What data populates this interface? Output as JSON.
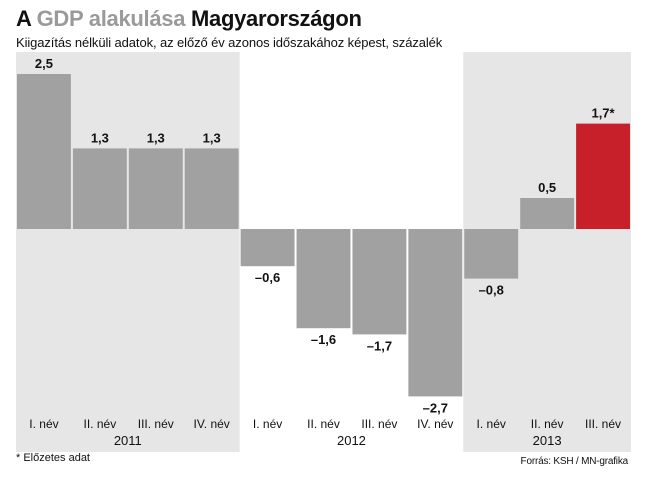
{
  "header": {
    "title_prefix": "A ",
    "title_gdp": "GDP",
    "title_mid": " alakulása ",
    "title_country": "Magyarországon",
    "subtitle": "Kiigazítás nélküli adatok, az előző év azonos időszakához képest, százalék"
  },
  "footer": {
    "footnote": "* Előzetes adat",
    "source": "Forrás: KSH / MN-grafika"
  },
  "colors": {
    "bar": "#a1a1a1",
    "highlight": "#c8202a",
    "panel": "#e6e6e6",
    "text": "#111111"
  },
  "chart_data": {
    "type": "bar",
    "title": "A GDP alakulása Magyarországon",
    "ylim": [
      -2.9,
      2.9
    ],
    "categories": [
      "I. név",
      "II. név",
      "III. név",
      "IV. név",
      "I. név",
      "II. név",
      "III. név",
      "IV. név",
      "I. név",
      "II. név",
      "III. név"
    ],
    "values": [
      2.5,
      1.3,
      1.3,
      1.3,
      -0.6,
      -1.6,
      -1.7,
      -2.7,
      -0.8,
      0.5,
      1.7
    ],
    "value_labels": [
      "2,5",
      "1,3",
      "1,3",
      "1,3",
      "–0,6",
      "–1,6",
      "–1,7",
      "–2,7",
      "–0,8",
      "0,5",
      "1,7*"
    ],
    "highlight_index": 10,
    "groups": [
      {
        "label": "2011",
        "start": 0,
        "end": 3,
        "shaded": true
      },
      {
        "label": "2012",
        "start": 4,
        "end": 7,
        "shaded": false
      },
      {
        "label": "2013",
        "start": 8,
        "end": 10,
        "shaded": true
      }
    ],
    "grid": false
  }
}
